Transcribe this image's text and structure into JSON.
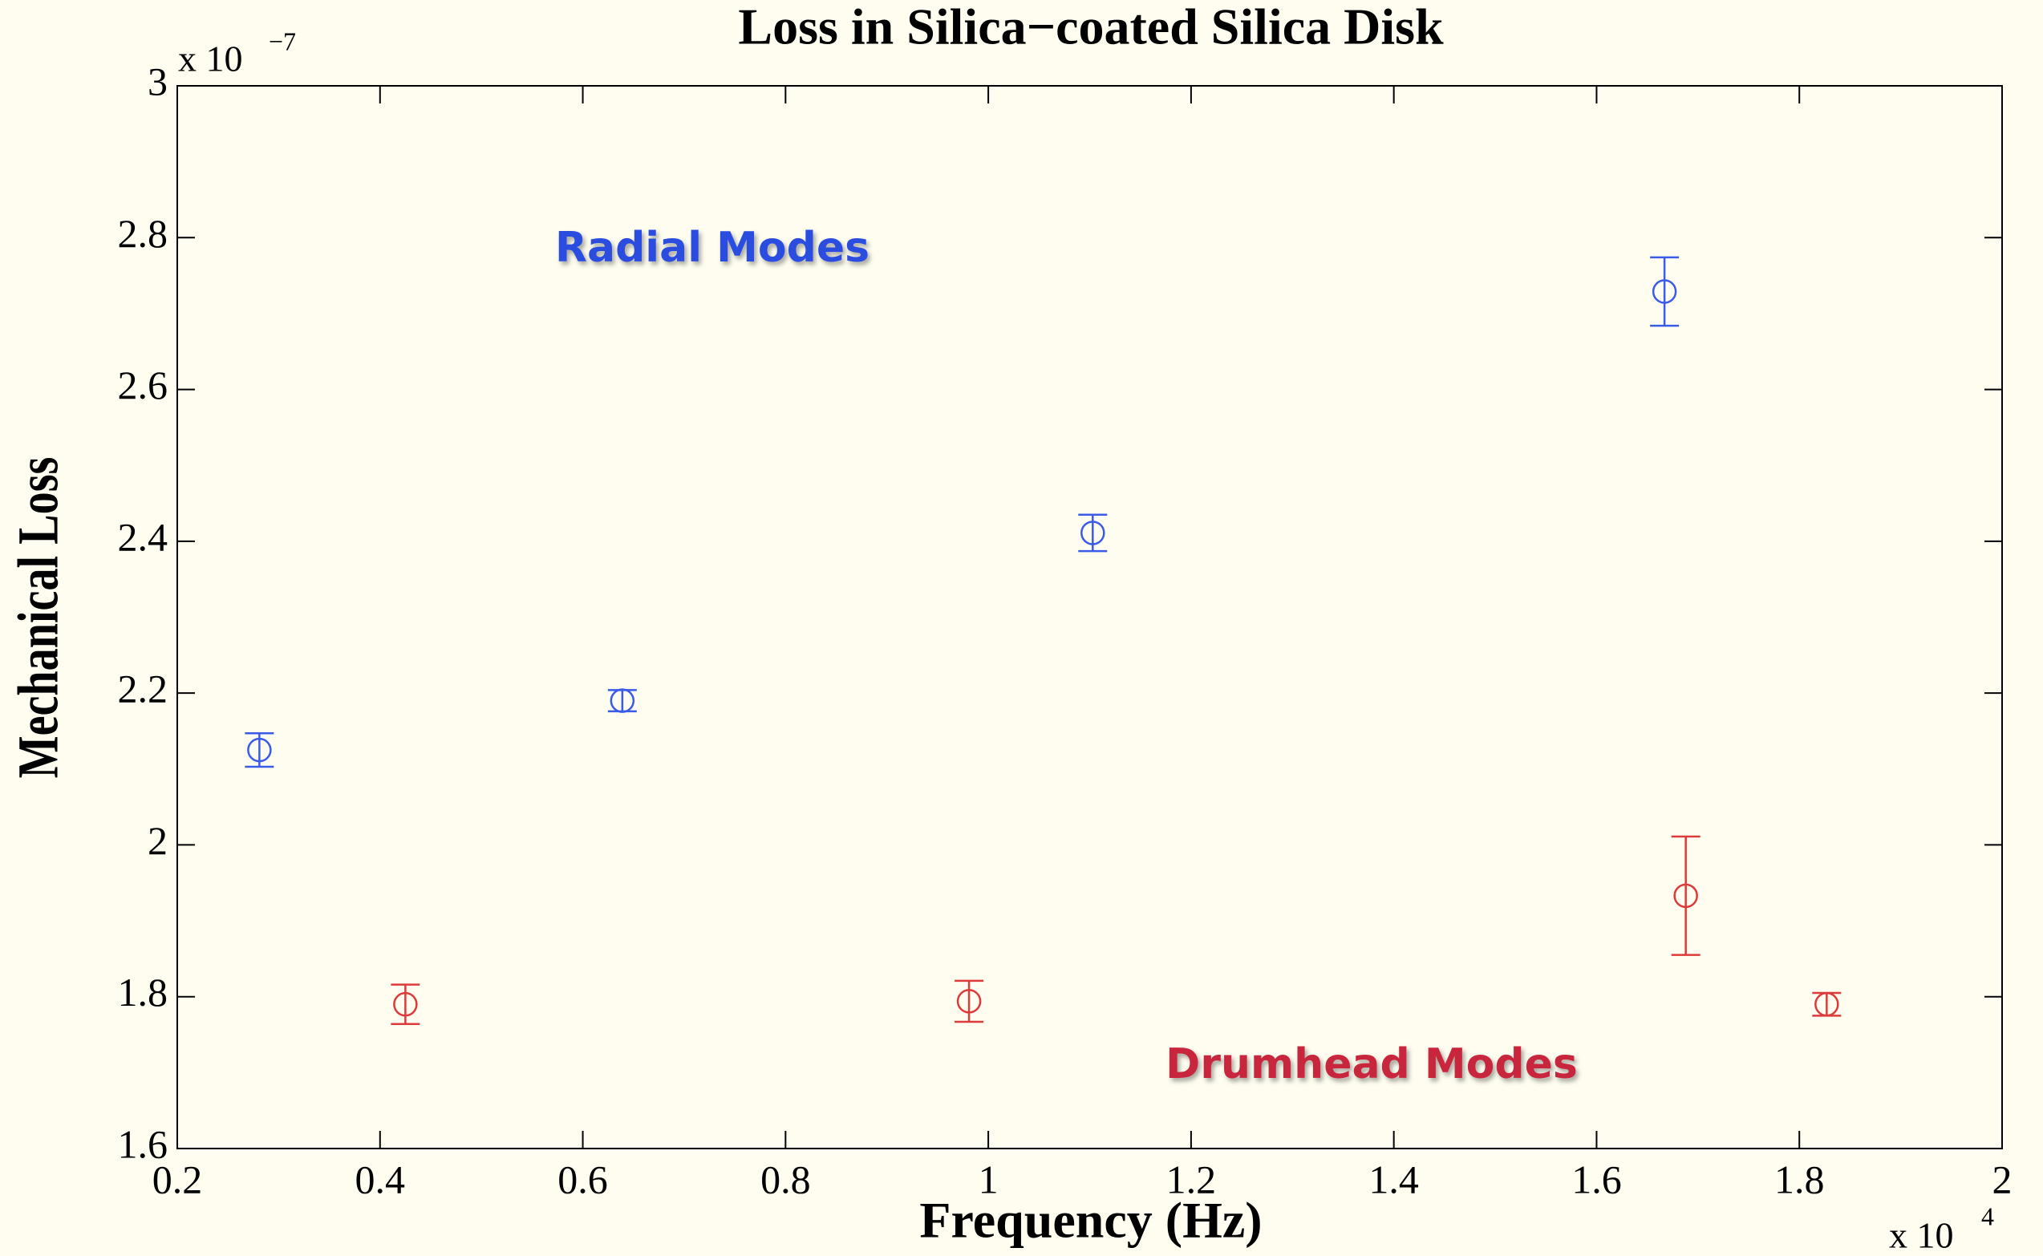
{
  "chart_data": {
    "type": "scatter",
    "title": "Loss in Silica−coated Silica Disk",
    "x_label": "Frequency (Hz)",
    "y_label": "Mechanical Loss",
    "x_multiplier": "x 10",
    "x_multiplier_exponent": "4",
    "y_multiplier": "x 10",
    "y_multiplier_exponent": "−7",
    "xlim": [
      0.2,
      2
    ],
    "ylim": [
      1.6,
      3
    ],
    "xticks": [
      0.2,
      0.4,
      0.6,
      0.8,
      1,
      1.2,
      1.4,
      1.6,
      1.8,
      2
    ],
    "yticks": [
      1.6,
      1.8,
      2,
      2.2,
      2.4,
      2.6,
      2.8,
      3
    ],
    "series": [
      {
        "name": "Radial Modes",
        "color": "#3a5ae8",
        "label_color": "#2a4ee0",
        "x": [
          0.281,
          0.639,
          1.103,
          1.667
        ],
        "values": [
          2.125,
          2.19,
          2.411,
          2.729
        ],
        "errors": [
          0.022,
          0.014,
          0.024,
          0.045
        ]
      },
      {
        "name": "Drumhead Modes",
        "color": "#dd3a3a",
        "label_color": "#c8283c",
        "x": [
          0.425,
          0.981,
          1.688,
          1.827
        ],
        "values": [
          1.79,
          1.794,
          1.933,
          1.79
        ],
        "errors": [
          0.026,
          0.027,
          0.078,
          0.015
        ]
      }
    ]
  }
}
